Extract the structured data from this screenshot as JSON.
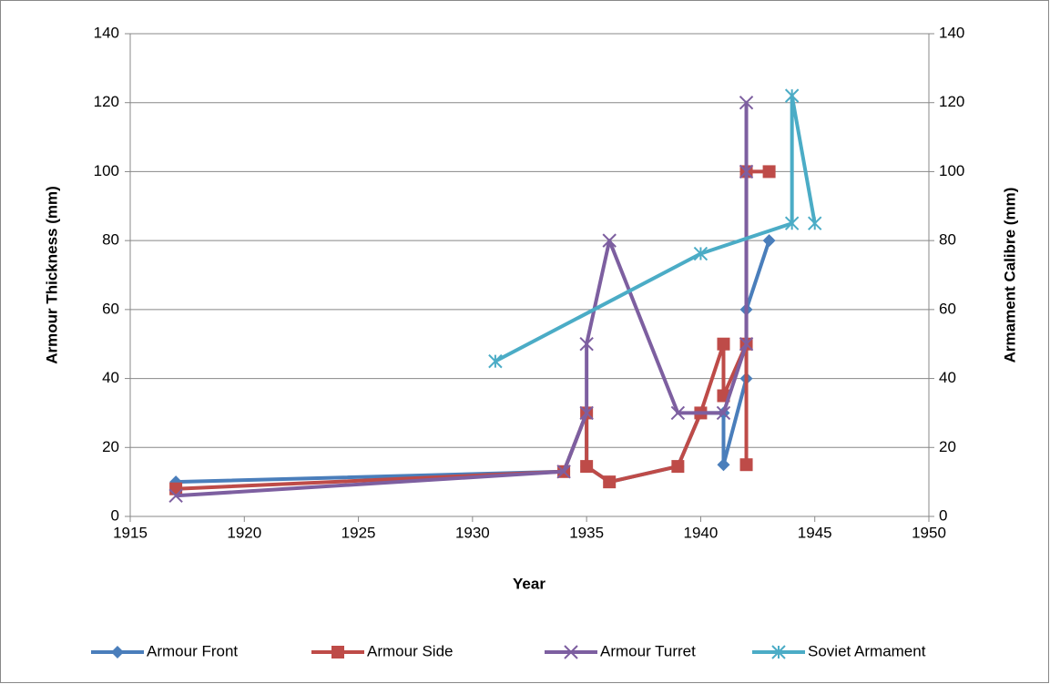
{
  "chart_data": {
    "type": "scatter-line",
    "xlabel": "Year",
    "ylabel": "Armour Thickness (mm)",
    "y2label": "Armament Calibre (mm)",
    "xlim": [
      1915,
      1950
    ],
    "xticks": [
      1915,
      1920,
      1925,
      1930,
      1935,
      1940,
      1945,
      1950
    ],
    "ylim": [
      0,
      140
    ],
    "yticks": [
      0,
      20,
      40,
      60,
      80,
      100,
      120,
      140
    ],
    "y2lim": [
      0,
      140
    ],
    "y2ticks": [
      0,
      20,
      40,
      60,
      80,
      100,
      120,
      140
    ],
    "grid": true,
    "legend": "bottom",
    "series": [
      {
        "name": "Armour Front",
        "color": "#4a7ebb",
        "marker": "diamond",
        "x": [
          1917,
          1934,
          1935,
          1935,
          1936,
          1939,
          1940,
          1941,
          1941,
          1942,
          1942,
          1943
        ],
        "values": [
          10,
          13,
          30,
          14.5,
          10,
          14.5,
          30,
          30,
          15,
          40,
          60,
          80
        ]
      },
      {
        "name": "Armour Side",
        "color": "#be4b48",
        "marker": "square",
        "x": [
          1917,
          1934,
          1935,
          1935,
          1936,
          1939,
          1940,
          1941,
          1941,
          1942,
          1942,
          1942,
          1943
        ],
        "values": [
          8,
          13,
          30,
          14.5,
          10,
          14.5,
          30,
          50,
          35,
          50,
          15,
          100,
          100
        ]
      },
      {
        "name": "Armour Turret",
        "color": "#7d5fa0",
        "marker": "x",
        "x": [
          1917,
          1934,
          1935,
          1935,
          1936,
          1939,
          1941,
          1942,
          1942,
          1942
        ],
        "values": [
          6,
          13,
          30,
          50,
          80,
          30,
          30,
          50,
          120,
          100
        ]
      },
      {
        "name": "Soviet Armament",
        "color": "#4bacc6",
        "marker": "star",
        "axis": "y2",
        "x": [
          1931,
          1940,
          1944,
          1944,
          1945
        ],
        "values": [
          45,
          76.2,
          85,
          122,
          85
        ]
      }
    ]
  }
}
